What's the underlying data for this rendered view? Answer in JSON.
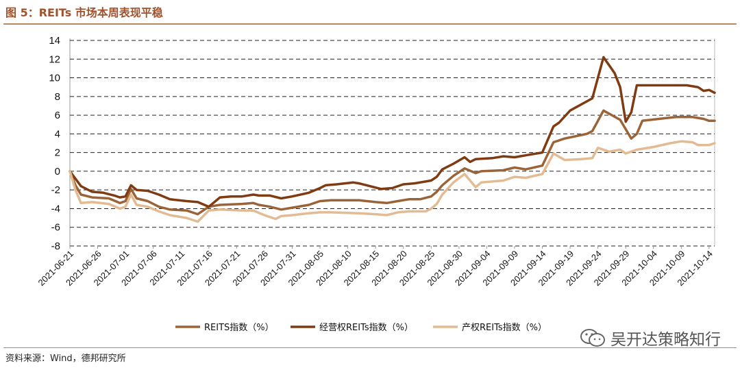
{
  "header": {
    "title": "图 5：REITs 市场本周表现平稳"
  },
  "footer": {
    "source": "资料来源：Wind，德邦研究所",
    "watermark": "吴开达策略知行"
  },
  "colors": {
    "accent": "#a0522d",
    "rule": "#b88a61"
  },
  "chart_data": {
    "type": "line",
    "title": "",
    "xlabel": "",
    "ylabel": "",
    "ylim": [
      -8,
      14
    ],
    "yticks": [
      14,
      12,
      10,
      8,
      6,
      4,
      2,
      0,
      -2,
      -4,
      -6,
      -8
    ],
    "xticks": [
      "2021-06-21",
      "2021-06-26",
      "2021-07-01",
      "2021-07-06",
      "2021-07-11",
      "2021-07-16",
      "2021-07-21",
      "2021-07-26",
      "2021-07-31",
      "2021-08-05",
      "2021-08-10",
      "2021-08-15",
      "2021-08-20",
      "2021-08-25",
      "2021-08-30",
      "2021-09-04",
      "2021-09-09",
      "2021-09-14",
      "2021-09-19",
      "2021-09-24",
      "2021-09-29",
      "2021-10-04",
      "2021-10-09",
      "2021-10-14"
    ],
    "x_start": "2021-06-21",
    "x_end": "2021-10-15",
    "grid": "horizontal dashed",
    "legend_position": "bottom",
    "series": [
      {
        "name": "REITS指数（%）",
        "color": "#9a6438",
        "points": [
          [
            "2021-06-21",
            0
          ],
          [
            "2021-06-22",
            -1.5
          ],
          [
            "2021-06-23",
            -2.5
          ],
          [
            "2021-06-25",
            -2.8
          ],
          [
            "2021-06-28",
            -2.9
          ],
          [
            "2021-06-30",
            -3.4
          ],
          [
            "2021-07-01",
            -3.2
          ],
          [
            "2021-07-02",
            -1.9
          ],
          [
            "2021-07-03",
            -2.9
          ],
          [
            "2021-07-05",
            -3.2
          ],
          [
            "2021-07-07",
            -3.8
          ],
          [
            "2021-07-09",
            -4.1
          ],
          [
            "2021-07-12",
            -4.2
          ],
          [
            "2021-07-14",
            -4.6
          ],
          [
            "2021-07-16",
            -3.8
          ],
          [
            "2021-07-18",
            -3.6
          ],
          [
            "2021-07-22",
            -3.5
          ],
          [
            "2021-07-24",
            -3.4
          ],
          [
            "2021-07-25",
            -3.6
          ],
          [
            "2021-07-27",
            -3.8
          ],
          [
            "2021-07-29",
            -4.1
          ],
          [
            "2021-07-31",
            -3.9
          ],
          [
            "2021-08-03",
            -3.6
          ],
          [
            "2021-08-05",
            -3.2
          ],
          [
            "2021-08-07",
            -3.1
          ],
          [
            "2021-08-12",
            -3.1
          ],
          [
            "2021-08-15",
            -3.3
          ],
          [
            "2021-08-17",
            -3.4
          ],
          [
            "2021-08-19",
            -3.2
          ],
          [
            "2021-08-21",
            -3.0
          ],
          [
            "2021-08-23",
            -3.0
          ],
          [
            "2021-08-25",
            -2.7
          ],
          [
            "2021-08-26",
            -2.2
          ],
          [
            "2021-08-27",
            -1.5
          ],
          [
            "2021-08-29",
            -0.5
          ],
          [
            "2021-08-31",
            0.3
          ],
          [
            "2021-09-02",
            -0.2
          ],
          [
            "2021-09-03",
            0.0
          ],
          [
            "2021-09-07",
            0.1
          ],
          [
            "2021-09-09",
            0.4
          ],
          [
            "2021-09-11",
            0.2
          ],
          [
            "2021-09-14",
            0.6
          ],
          [
            "2021-09-16",
            3.1
          ],
          [
            "2021-09-18",
            3.5
          ],
          [
            "2021-09-22",
            4.0
          ],
          [
            "2021-09-23",
            4.3
          ],
          [
            "2021-09-25",
            6.5
          ],
          [
            "2021-09-28",
            5.5
          ],
          [
            "2021-09-30",
            3.5
          ],
          [
            "2021-10-01",
            4.0
          ],
          [
            "2021-10-02",
            5.4
          ],
          [
            "2021-10-05",
            5.6
          ],
          [
            "2021-10-08",
            5.8
          ],
          [
            "2021-10-11",
            5.8
          ],
          [
            "2021-10-13",
            5.6
          ],
          [
            "2021-10-14",
            5.4
          ],
          [
            "2021-10-15",
            5.4
          ]
        ]
      },
      {
        "name": "经营权REITs指数（%）",
        "color": "#7f3b12",
        "points": [
          [
            "2021-06-21",
            0
          ],
          [
            "2021-06-22",
            -0.8
          ],
          [
            "2021-06-23",
            -1.6
          ],
          [
            "2021-06-25",
            -2.2
          ],
          [
            "2021-06-27",
            -2.3
          ],
          [
            "2021-06-29",
            -2.6
          ],
          [
            "2021-06-30",
            -2.8
          ],
          [
            "2021-07-01",
            -2.7
          ],
          [
            "2021-07-02",
            -1.5
          ],
          [
            "2021-07-03",
            -2.0
          ],
          [
            "2021-07-05",
            -2.1
          ],
          [
            "2021-07-07",
            -2.5
          ],
          [
            "2021-07-09",
            -3.0
          ],
          [
            "2021-07-12",
            -3.2
          ],
          [
            "2021-07-14",
            -3.3
          ],
          [
            "2021-07-16",
            -3.8
          ],
          [
            "2021-07-18",
            -2.8
          ],
          [
            "2021-07-20",
            -2.7
          ],
          [
            "2021-07-22",
            -2.7
          ],
          [
            "2021-07-24",
            -2.5
          ],
          [
            "2021-07-25",
            -2.6
          ],
          [
            "2021-07-27",
            -2.6
          ],
          [
            "2021-07-29",
            -2.9
          ],
          [
            "2021-07-31",
            -2.7
          ],
          [
            "2021-08-03",
            -2.3
          ],
          [
            "2021-08-05",
            -1.8
          ],
          [
            "2021-08-06",
            -1.5
          ],
          [
            "2021-08-08",
            -1.4
          ],
          [
            "2021-08-11",
            -1.2
          ],
          [
            "2021-08-12",
            -1.3
          ],
          [
            "2021-08-14",
            -1.6
          ],
          [
            "2021-08-16",
            -1.9
          ],
          [
            "2021-08-18",
            -1.8
          ],
          [
            "2021-08-20",
            -1.4
          ],
          [
            "2021-08-22",
            -1.3
          ],
          [
            "2021-08-25",
            -1.0
          ],
          [
            "2021-08-26",
            -0.6
          ],
          [
            "2021-08-27",
            0.2
          ],
          [
            "2021-08-29",
            0.8
          ],
          [
            "2021-08-31",
            1.5
          ],
          [
            "2021-09-01",
            1.0
          ],
          [
            "2021-09-02",
            1.3
          ],
          [
            "2021-09-05",
            1.4
          ],
          [
            "2021-09-07",
            1.6
          ],
          [
            "2021-09-09",
            1.5
          ],
          [
            "2021-09-11",
            1.7
          ],
          [
            "2021-09-14",
            2.0
          ],
          [
            "2021-09-16",
            4.8
          ],
          [
            "2021-09-17",
            5.2
          ],
          [
            "2021-09-19",
            6.5
          ],
          [
            "2021-09-23",
            7.8
          ],
          [
            "2021-09-25",
            12.2
          ],
          [
            "2021-09-27",
            10.5
          ],
          [
            "2021-09-28",
            9.0
          ],
          [
            "2021-09-29",
            5.3
          ],
          [
            "2021-09-30",
            6.3
          ],
          [
            "2021-10-01",
            9.2
          ],
          [
            "2021-10-06",
            9.2
          ],
          [
            "2021-10-10",
            9.2
          ],
          [
            "2021-10-12",
            9.0
          ],
          [
            "2021-10-13",
            8.6
          ],
          [
            "2021-10-14",
            8.7
          ],
          [
            "2021-10-15",
            8.4
          ]
        ]
      },
      {
        "name": "产权REITs指数（%）",
        "color": "#e3bb92",
        "points": [
          [
            "2021-06-21",
            0
          ],
          [
            "2021-06-22",
            -2.0
          ],
          [
            "2021-06-23",
            -3.4
          ],
          [
            "2021-06-25",
            -3.3
          ],
          [
            "2021-06-28",
            -3.5
          ],
          [
            "2021-06-30",
            -4.0
          ],
          [
            "2021-07-01",
            -3.8
          ],
          [
            "2021-07-02",
            -2.5
          ],
          [
            "2021-07-03",
            -3.6
          ],
          [
            "2021-07-05",
            -3.8
          ],
          [
            "2021-07-07",
            -4.3
          ],
          [
            "2021-07-09",
            -4.7
          ],
          [
            "2021-07-12",
            -5.0
          ],
          [
            "2021-07-14",
            -5.4
          ],
          [
            "2021-07-16",
            -4.2
          ],
          [
            "2021-07-18",
            -4.1
          ],
          [
            "2021-07-22",
            -4.2
          ],
          [
            "2021-07-24",
            -4.2
          ],
          [
            "2021-07-26",
            -4.7
          ],
          [
            "2021-07-28",
            -5.1
          ],
          [
            "2021-07-29",
            -4.8
          ],
          [
            "2021-07-31",
            -4.7
          ],
          [
            "2021-08-03",
            -4.5
          ],
          [
            "2021-08-05",
            -4.4
          ],
          [
            "2021-08-07",
            -4.4
          ],
          [
            "2021-08-12",
            -4.5
          ],
          [
            "2021-08-15",
            -4.6
          ],
          [
            "2021-08-17",
            -4.7
          ],
          [
            "2021-08-19",
            -4.4
          ],
          [
            "2021-08-21",
            -4.3
          ],
          [
            "2021-08-24",
            -4.3
          ],
          [
            "2021-08-25",
            -4.0
          ],
          [
            "2021-08-26",
            -3.5
          ],
          [
            "2021-08-27",
            -2.5
          ],
          [
            "2021-08-29",
            -1.2
          ],
          [
            "2021-08-31",
            -0.3
          ],
          [
            "2021-09-02",
            -1.7
          ],
          [
            "2021-09-03",
            -1.2
          ],
          [
            "2021-09-07",
            -1.0
          ],
          [
            "2021-09-09",
            -0.6
          ],
          [
            "2021-09-11",
            -0.7
          ],
          [
            "2021-09-14",
            -0.3
          ],
          [
            "2021-09-16",
            1.9
          ],
          [
            "2021-09-18",
            1.2
          ],
          [
            "2021-09-21",
            1.3
          ],
          [
            "2021-09-23",
            1.4
          ],
          [
            "2021-09-24",
            2.5
          ],
          [
            "2021-09-26",
            2.1
          ],
          [
            "2021-09-28",
            2.3
          ],
          [
            "2021-09-29",
            1.9
          ],
          [
            "2021-10-01",
            2.3
          ],
          [
            "2021-10-04",
            2.6
          ],
          [
            "2021-10-07",
            3.0
          ],
          [
            "2021-10-09",
            3.2
          ],
          [
            "2021-10-11",
            3.1
          ],
          [
            "2021-10-12",
            2.8
          ],
          [
            "2021-10-14",
            2.8
          ],
          [
            "2021-10-15",
            3.0
          ]
        ]
      }
    ]
  }
}
